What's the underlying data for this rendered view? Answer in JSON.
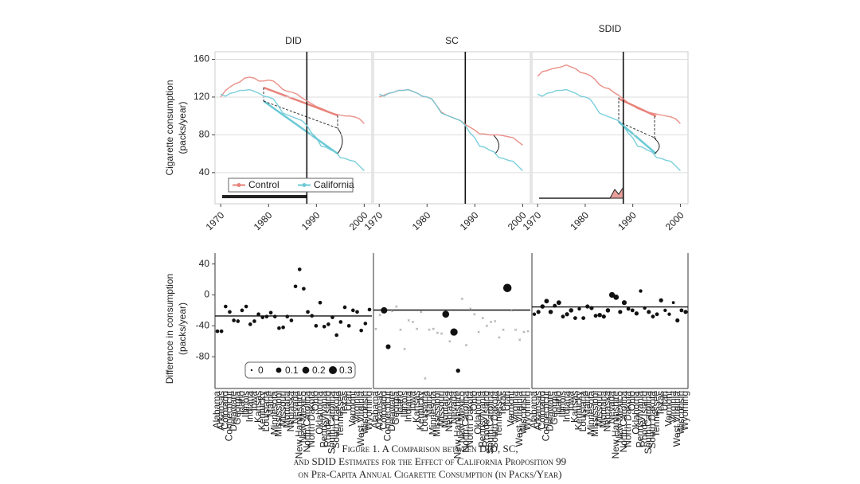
{
  "caption": [
    "Figure 1. A Comparison between DID, SC,",
    "and SDID Estimates for the Effect of California Proposition 99",
    "on Per-Capita Annual Cigarette Consumption (in Packs/Year)"
  ],
  "chart_data": [
    {
      "type": "line",
      "title": "DID",
      "ylabel": [
        "Cigarette consumption",
        "(packs/year)"
      ],
      "x": [
        1970,
        1971,
        1972,
        1973,
        1974,
        1975,
        1976,
        1977,
        1978,
        1979,
        1980,
        1981,
        1982,
        1983,
        1984,
        1985,
        1986,
        1987,
        1988,
        1989,
        1990,
        1991,
        1992,
        1993,
        1994,
        1995,
        1996,
        1997,
        1998,
        1999,
        2000
      ],
      "series": [
        {
          "name": "Control",
          "color": "#e8837a",
          "values": [
            120,
            127,
            131,
            134,
            136,
            140,
            141,
            140,
            137,
            137,
            138,
            137,
            133,
            128,
            126,
            125,
            123,
            119,
            116,
            113,
            110,
            108,
            106,
            103,
            102,
            101,
            100,
            100,
            99,
            97,
            92
          ]
        },
        {
          "name": "California",
          "color": "#6ccad6",
          "values": [
            123,
            121,
            124,
            125,
            127,
            127,
            128,
            126,
            124,
            121,
            120,
            118,
            111,
            103,
            101,
            99,
            97,
            95,
            90,
            82,
            77,
            68,
            67,
            64,
            62,
            56,
            55,
            53,
            52,
            47,
            42
          ]
        }
      ],
      "xlim": [
        1968.8,
        2001.6
      ],
      "xticks": [
        1970,
        1980,
        1990,
        2000
      ],
      "ylim": [
        7,
        168
      ],
      "yticks": [
        40,
        80,
        120,
        160
      ],
      "vline": 1988,
      "grid": true,
      "legend": "bottom"
    },
    {
      "type": "line",
      "title": "SC",
      "x": [
        1970,
        1971,
        1972,
        1973,
        1974,
        1975,
        1976,
        1977,
        1978,
        1979,
        1980,
        1981,
        1982,
        1983,
        1984,
        1985,
        1986,
        1987,
        1988,
        1989,
        1990,
        1991,
        1992,
        1993,
        1994,
        1995,
        1996,
        1997,
        1998,
        1999,
        2000
      ],
      "series": [
        {
          "color": "#e8837a",
          "values": [
            120,
            122,
            124,
            125,
            127,
            127,
            128,
            126,
            124,
            121,
            120,
            118,
            111,
            104,
            101,
            99,
            97,
            95,
            91,
            88,
            85,
            81,
            81,
            80,
            80,
            80,
            79,
            78,
            77,
            73,
            69
          ]
        },
        {
          "color": "#6ccad6",
          "values": [
            123,
            121,
            124,
            125,
            127,
            127,
            128,
            126,
            124,
            121,
            120,
            118,
            111,
            103,
            101,
            99,
            97,
            95,
            90,
            82,
            77,
            68,
            67,
            64,
            62,
            56,
            55,
            53,
            52,
            47,
            42
          ]
        }
      ],
      "xlim": [
        1968.8,
        2001.6
      ],
      "xticks": [
        1970,
        1980,
        1990,
        2000
      ],
      "ylim": [
        7,
        168
      ],
      "yticks": [
        40,
        80,
        120,
        160
      ],
      "vline": 1988,
      "grid": true
    },
    {
      "type": "line",
      "title": "SDID",
      "x": [
        1970,
        1971,
        1972,
        1973,
        1974,
        1975,
        1976,
        1977,
        1978,
        1979,
        1980,
        1981,
        1982,
        1983,
        1984,
        1985,
        1986,
        1987,
        1988,
        1989,
        1990,
        1991,
        1992,
        1993,
        1994,
        1995,
        1996,
        1997,
        1998,
        1999,
        2000
      ],
      "series": [
        {
          "color": "#e8837a",
          "values": [
            142,
            147,
            148,
            150,
            151,
            152,
            154,
            152,
            150,
            146,
            145,
            143,
            139,
            133,
            130,
            129,
            125,
            122,
            118,
            114,
            111,
            108,
            106,
            104,
            103,
            102,
            101,
            100,
            99,
            97,
            92
          ]
        },
        {
          "color": "#6ccad6",
          "values": [
            123,
            121,
            124,
            125,
            127,
            127,
            128,
            126,
            124,
            121,
            120,
            118,
            111,
            103,
            101,
            99,
            97,
            95,
            90,
            82,
            77,
            68,
            67,
            64,
            62,
            56,
            55,
            53,
            52,
            47,
            42
          ]
        }
      ],
      "xlim": [
        1968.8,
        2001.6
      ],
      "xticks": [
        1970,
        1980,
        1990,
        2000
      ],
      "ylim": [
        7,
        168
      ],
      "yticks": [
        40,
        80,
        120,
        160
      ],
      "vline": 1988,
      "grid": true
    },
    {
      "type": "dot",
      "ylabel": [
        "Difference in consumption",
        "(packs/year)"
      ],
      "categories": [
        "Alabama",
        "Arkansas",
        "Colorado",
        "Connecticut",
        "Delaware",
        "Georgia",
        "Idaho",
        "Illinois",
        "Indiana",
        "Iowa",
        "Kansas",
        "Kentucky",
        "Louisiana",
        "Maine",
        "Minnesota",
        "Mississippi",
        "Missouri",
        "Montana",
        "Nebraska",
        "Nevada",
        "New Hampshire",
        "New Mexico",
        "North Carolina",
        "North Dakota",
        "Ohio",
        "Oklahoma",
        "Pennsylvania",
        "Rhode Island",
        "South Carolina",
        "South Dakota",
        "Tennessee",
        "Texas",
        "Utah",
        "Vermont",
        "Virginia",
        "West Virginia",
        "Wisconsin",
        "Wyoming"
      ],
      "values": [
        -47,
        -47,
        -15,
        -22,
        -33,
        -34,
        -20,
        -15,
        -38,
        -34,
        -25,
        -29,
        -28,
        -23,
        -28,
        -43,
        -42,
        -28,
        -33,
        11,
        33,
        8,
        -22,
        -27,
        -40,
        -10,
        -41,
        -38,
        -29,
        -52,
        -35,
        -16,
        -40,
        -20,
        -22,
        -46,
        -37,
        -19
      ],
      "weights": [
        0.026,
        0.026,
        0.026,
        0.026,
        0.026,
        0.026,
        0.026,
        0.026,
        0.026,
        0.026,
        0.026,
        0.026,
        0.026,
        0.026,
        0.026,
        0.026,
        0.026,
        0.026,
        0.026,
        0.026,
        0.026,
        0.026,
        0.026,
        0.026,
        0.026,
        0.026,
        0.026,
        0.026,
        0.026,
        0.026,
        0.026,
        0.026,
        0.026,
        0.026,
        0.026,
        0.026,
        0.026,
        0.026
      ],
      "estimate": -27.3,
      "ylim": [
        -121,
        54
      ],
      "yticks": [
        -80,
        -40,
        0,
        40
      ],
      "size_legend": [
        0,
        0.1,
        0.2,
        0.3
      ]
    },
    {
      "type": "dot",
      "categories": [
        "Alabama",
        "Arkansas",
        "Colorado",
        "Connecticut",
        "Delaware",
        "Georgia",
        "Idaho",
        "Illinois",
        "Indiana",
        "Iowa",
        "Kansas",
        "Kentucky",
        "Louisiana",
        "Maine",
        "Minnesota",
        "Mississippi",
        "Missouri",
        "Montana",
        "Nebraska",
        "Nevada",
        "New Hampshire",
        "New Mexico",
        "North Carolina",
        "North Dakota",
        "Ohio",
        "Oklahoma",
        "Pennsylvania",
        "Rhode Island",
        "South Carolina",
        "South Dakota",
        "Tennessee",
        "Texas",
        "Utah",
        "Vermont",
        "Virginia",
        "West Virginia",
        "Wisconsin",
        "Wyoming"
      ],
      "values": [
        -44,
        -26,
        -20,
        -67,
        -21,
        -15,
        -45,
        -70,
        -33,
        -35,
        -44,
        -22,
        -108,
        -45,
        -44,
        -49,
        -50,
        -25,
        -60,
        -48,
        -98,
        -5,
        -65,
        -18,
        -25,
        -48,
        -30,
        -40,
        -35,
        -34,
        -55,
        -45,
        9,
        -20,
        -45,
        -58,
        -48,
        -47
      ],
      "weights": [
        0,
        0,
        0.164,
        0.069,
        0,
        0,
        0,
        0,
        0,
        0,
        0,
        0,
        0,
        0,
        0,
        0,
        0,
        0.199,
        0,
        0.234,
        0.045,
        0,
        0,
        0,
        0,
        0,
        0,
        0,
        0,
        0,
        0,
        0,
        0.334,
        0,
        0,
        0,
        0,
        0
      ],
      "estimate": -19.6,
      "ylim": [
        -121,
        54
      ],
      "yticks": [
        -80,
        -40,
        0,
        40
      ]
    },
    {
      "type": "dot",
      "categories": [
        "Alabama",
        "Arkansas",
        "Colorado",
        "Connecticut",
        "Delaware",
        "Georgia",
        "Idaho",
        "Illinois",
        "Indiana",
        "Iowa",
        "Kansas",
        "Kentucky",
        "Louisiana",
        "Maine",
        "Minnesota",
        "Mississippi",
        "Missouri",
        "Montana",
        "Nebraska",
        "Nevada",
        "New Hampshire",
        "New Mexico",
        "North Carolina",
        "North Dakota",
        "Ohio",
        "Oklahoma",
        "Pennsylvania",
        "Rhode Island",
        "South Carolina",
        "South Dakota",
        "Tennessee",
        "Texas",
        "Utah",
        "Vermont",
        "Virginia",
        "West Virginia",
        "Wisconsin",
        "Wyoming"
      ],
      "values": [
        -25,
        -22,
        -15,
        -8,
        -22,
        -14,
        -10,
        -28,
        -25,
        -20,
        -30,
        -18,
        -30,
        -15,
        -17,
        -27,
        -26,
        -28,
        -20,
        0,
        -3,
        -22,
        -10,
        -18,
        -20,
        -24,
        5,
        -17,
        -22,
        -28,
        -25,
        -7,
        -20,
        -25,
        -10,
        -33,
        -20,
        -22
      ],
      "weights": [
        0.02,
        0.04,
        0.05,
        0.06,
        0.05,
        0.03,
        0.06,
        0.03,
        0.04,
        0.05,
        0.03,
        0.02,
        0.03,
        0.04,
        0.04,
        0.03,
        0.05,
        0.04,
        0.05,
        0.12,
        0.1,
        0.04,
        0.07,
        0.03,
        0.03,
        0.04,
        0.02,
        0.02,
        0.04,
        0.03,
        0.03,
        0.04,
        0.02,
        0.02,
        0.01,
        0.04,
        0.03,
        0.04
      ],
      "estimate": -15.6,
      "ylim": [
        -121,
        54
      ],
      "yticks": [
        -80,
        -40,
        0,
        40
      ]
    }
  ]
}
